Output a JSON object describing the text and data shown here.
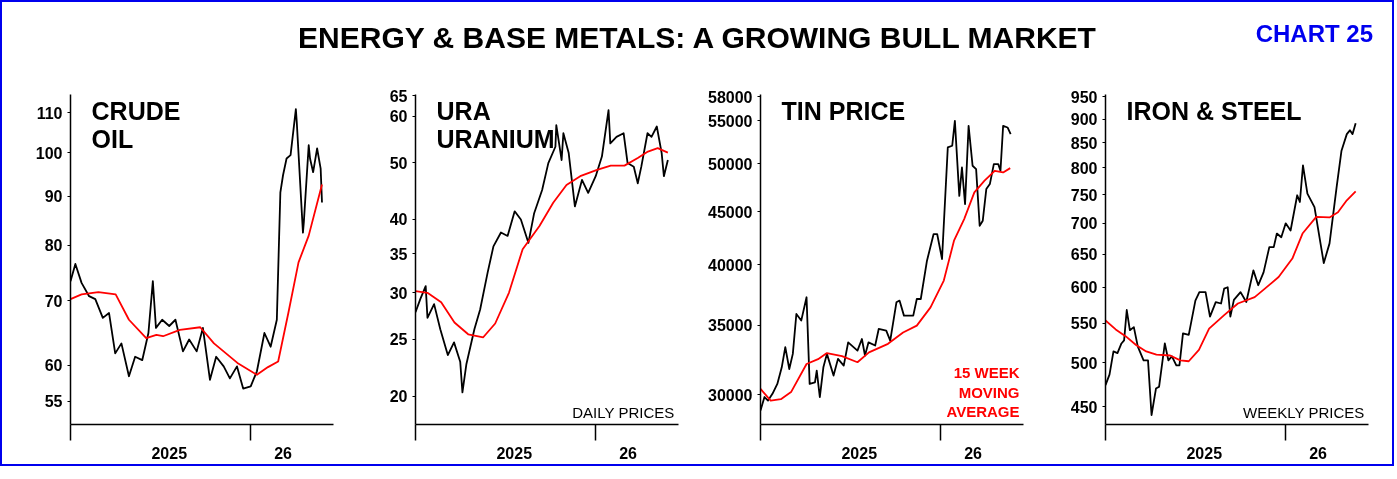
{
  "chart_data": [
    {
      "type": "line",
      "title": "CRUDE\nOIL",
      "log": true,
      "annotations": [
        "ENERGY & BASE METALS: A GROWING BULL MARKET",
        "CHART 25"
      ],
      "xlim": [
        "2024-11-20",
        "2026-07-07"
      ],
      "xticks": [
        {
          "value": "2024-11-20",
          "label": null
        },
        {
          "value": "2025-07-01",
          "label": "2025"
        },
        {
          "value": "2026-01-01",
          "label": null
        },
        {
          "value": "2026-03-15",
          "label": "26"
        }
      ],
      "ylim": [
        52,
        115
      ],
      "yticks": [
        55,
        60,
        70,
        80,
        90,
        100,
        110
      ],
      "series": [
        {
          "color": "#000000",
          "x": [
            "2024-11-20",
            "2024-12-01",
            "2024-12-15",
            "2025-01-01",
            "2025-01-15",
            "2025-02-01",
            "2025-02-15",
            "2025-03-01",
            "2025-03-15",
            "2025-04-01",
            "2025-04-15",
            "2025-05-01",
            "2025-05-15",
            "2025-05-25",
            "2025-06-01",
            "2025-06-15",
            "2025-07-01",
            "2025-07-15",
            "2025-08-01",
            "2025-08-15",
            "2025-09-01",
            "2025-09-15",
            "2025-10-01",
            "2025-10-15",
            "2025-11-01",
            "2025-11-15",
            "2025-12-01",
            "2025-12-15",
            "2026-01-01",
            "2026-01-15",
            "2026-02-01",
            "2026-02-15",
            "2026-03-01",
            "2026-03-09",
            "2026-03-15",
            "2026-03-23",
            "2026-04-01",
            "2026-04-13",
            "2026-04-15",
            "2026-04-29",
            "2026-05-01",
            "2026-05-12",
            "2026-05-15",
            "2026-05-22",
            "2026-05-31",
            "2026-06-08",
            "2026-06-11"
          ],
          "values": [
            73.4,
            76.5,
            73.1,
            70.8,
            70.3,
            67.2,
            68.0,
            61.7,
            63.2,
            58.4,
            61.2,
            60.7,
            64.8,
            73.4,
            65.6,
            66.9,
            65.9,
            66.9,
            62.0,
            63.8,
            62.0,
            65.6,
            57.9,
            61.2,
            59.8,
            58.1,
            59.8,
            56.7,
            57.0,
            59.1,
            64.8,
            62.7,
            66.9,
            90.9,
            94.7,
            98.6,
            99.4,
            111,
            107.7,
            82.5,
            84.6,
            101.8,
            98.6,
            95.4,
            101.0,
            96.2,
            88.7
          ]
        },
        {
          "color": "#ff0000",
          "x": [
            "2024-11-20",
            "2024-12-15",
            "2025-01-22",
            "2025-03-02",
            "2025-04-01",
            "2025-05-10",
            "2025-06-02",
            "2025-06-17",
            "2025-07-25",
            "2025-09-09",
            "2025-10-10",
            "2025-12-02",
            "2026-01-15",
            "2026-02-09",
            "2026-03-04",
            "2026-03-27",
            "2026-04-19",
            "2026-05-12",
            "2026-06-11"
          ],
          "values": [
            70.3,
            71.1,
            71.5,
            71.1,
            66.9,
            64.0,
            64.5,
            64.3,
            65.3,
            65.7,
            63.2,
            60.3,
            58.6,
            59.7,
            60.5,
            68.0,
            76.8,
            81.9,
            92.6
          ]
        }
      ]
    },
    {
      "type": "line",
      "title": "URA\nURANIUM",
      "log": true,
      "annotations": [
        "DAILY PRICES"
      ],
      "xlim": [
        "2024-11-20",
        "2026-07-07"
      ],
      "xticks": [
        {
          "value": "2024-11-20",
          "label": null
        },
        {
          "value": "2025-07-01",
          "label": "2025"
        },
        {
          "value": "2026-01-01",
          "label": null
        },
        {
          "value": "2026-03-15",
          "label": "26"
        }
      ],
      "ylim": [
        17.9,
        65.3
      ],
      "yticks": [
        20,
        25,
        30,
        35,
        40,
        50,
        60,
        65
      ],
      "series": [
        {
          "color": "#000000",
          "x": [
            "2024-11-20",
            "2024-12-01",
            "2024-12-13",
            "2024-12-17",
            "2025-01-01",
            "2025-01-15",
            "2025-02-01",
            "2025-02-15",
            "2025-03-01",
            "2025-03-06",
            "2025-03-15",
            "2025-04-02",
            "2025-04-15",
            "2025-05-02",
            "2025-05-15",
            "2025-06-01",
            "2025-06-16",
            "2025-07-02",
            "2025-07-16",
            "2025-08-02",
            "2025-08-15",
            "2025-09-02",
            "2025-09-16",
            "2025-10-02",
            "2025-10-04",
            "2025-10-16",
            "2025-10-20",
            "2025-11-01",
            "2025-11-15",
            "2025-12-01",
            "2025-12-15",
            "2026-01-01",
            "2026-01-15",
            "2026-01-30",
            "2026-02-03",
            "2026-02-10",
            "2026-02-17",
            "2026-03-05",
            "2026-03-14",
            "2026-03-28",
            "2026-04-06",
            "2026-04-14",
            "2026-04-28",
            "2026-05-07",
            "2026-05-19",
            "2026-05-30",
            "2026-06-04",
            "2026-06-13"
          ],
          "values": [
            27.8,
            29.3,
            30.8,
            27.2,
            28.7,
            26.0,
            23.5,
            24.7,
            22.9,
            20.3,
            22.7,
            26.0,
            28.1,
            32.5,
            36.0,
            38.0,
            37.5,
            41.3,
            40.0,
            36.5,
            41.0,
            44.9,
            49.9,
            53.2,
            57.9,
            50.5,
            56.1,
            51.9,
            42.1,
            46.7,
            44.4,
            47.4,
            51.2,
            61.4,
            53.9,
            54.6,
            55.3,
            56.1,
            49.9,
            49.2,
            46.1,
            49.2,
            56.1,
            55.3,
            57.6,
            51.9,
            47.4,
            50.5
          ]
        },
        {
          "color": "#ff0000",
          "x": [
            "2024-11-20",
            "2024-12-17",
            "2025-01-17",
            "2025-02-16",
            "2025-03-19",
            "2025-04-22",
            "2025-05-19",
            "2025-06-19",
            "2025-07-20",
            "2025-08-27",
            "2025-09-27",
            "2025-10-27",
            "2025-11-27",
            "2026-01-04",
            "2026-02-04",
            "2026-03-07",
            "2026-04-06",
            "2026-04-29",
            "2026-05-21",
            "2026-06-13"
          ],
          "values": [
            30.2,
            30.0,
            28.9,
            26.7,
            25.5,
            25.2,
            26.6,
            30.0,
            35.6,
            39.0,
            42.7,
            45.8,
            47.4,
            48.6,
            49.4,
            49.4,
            50.9,
            52.2,
            52.9,
            52.0
          ]
        }
      ]
    },
    {
      "type": "line",
      "title": "TIN PRICE",
      "log": true,
      "xlim": [
        "2024-11-20",
        "2026-07-07"
      ],
      "xticks": [
        {
          "value": "2024-11-20",
          "label": null
        },
        {
          "value": "2025-07-01",
          "label": "2025"
        },
        {
          "value": "2026-01-01",
          "label": null
        },
        {
          "value": "2026-03-15",
          "label": "26"
        }
      ],
      "ylim": [
        28100,
        58300
      ],
      "yticks": [
        30000,
        35000,
        40000,
        45000,
        50000,
        55000,
        58000
      ],
      "series": [
        {
          "color": "#000000",
          "x": [
            "2024-11-20",
            "2024-11-29",
            "2024-12-07",
            "2024-12-17",
            "2024-12-28",
            "2025-01-07",
            "2025-01-15",
            "2025-01-24",
            "2025-02-01",
            "2025-02-09",
            "2025-02-20",
            "2025-03-04",
            "2025-03-11",
            "2025-03-23",
            "2025-03-27",
            "2025-04-03",
            "2025-04-11",
            "2025-04-19",
            "2025-05-04",
            "2025-05-14",
            "2025-05-27",
            "2025-06-06",
            "2025-06-27",
            "2025-07-07",
            "2025-07-14",
            "2025-07-22",
            "2025-08-06",
            "2025-08-14",
            "2025-08-31",
            "2025-09-09",
            "2025-09-23",
            "2025-09-30",
            "2025-10-10",
            "2025-10-31",
            "2025-11-08",
            "2025-11-17",
            "2025-12-01",
            "2025-12-16",
            "2025-12-24",
            "2026-01-04",
            "2026-01-17",
            "2026-01-27",
            "2026-02-02",
            "2026-02-12",
            "2026-02-18",
            "2026-02-25",
            "2026-03-05",
            "2026-03-14",
            "2026-03-22",
            "2026-03-30",
            "2026-04-06",
            "2026-04-14",
            "2026-04-22",
            "2026-05-01",
            "2026-05-11",
            "2026-05-16",
            "2026-05-22",
            "2026-06-01",
            "2026-06-08"
          ],
          "values": [
            28990,
            29860,
            29630,
            30070,
            30740,
            31890,
            33340,
            31770,
            32850,
            35880,
            35360,
            37230,
            30740,
            30850,
            31660,
            29860,
            31890,
            32850,
            31310,
            32490,
            32010,
            33700,
            33090,
            33950,
            32730,
            33700,
            33460,
            34710,
            34590,
            33830,
            36820,
            36960,
            35750,
            35750,
            37090,
            37090,
            40370,
            42820,
            42820,
            40520,
            51860,
            52050,
            55000,
            46590,
            49610,
            45750,
            54400,
            49800,
            49430,
            43610,
            44100,
            47300,
            47820,
            49980,
            49980,
            49250,
            54400,
            54200,
            53400
          ]
        },
        {
          "name": "15 WEEK\nMOVING\nAVERAGE",
          "color": "#ff0000",
          "x": [
            "2024-11-20",
            "2024-12-13",
            "2025-01-05",
            "2025-01-28",
            "2025-03-04",
            "2025-03-30",
            "2025-04-19",
            "2025-05-23",
            "2025-06-27",
            "2025-07-23",
            "2025-09-04",
            "2025-10-08",
            "2025-11-08",
            "2025-12-09",
            "2026-01-08",
            "2026-01-31",
            "2026-02-23",
            "2026-03-18",
            "2026-04-10",
            "2026-05-03",
            "2026-05-22",
            "2026-06-07"
          ],
          "values": [
            30400,
            29620,
            29720,
            30190,
            32120,
            32470,
            32910,
            32690,
            32250,
            32960,
            33590,
            34440,
            34970,
            36410,
            38630,
            42190,
            44260,
            46950,
            48180,
            49250,
            49070,
            49540
          ]
        }
      ]
    },
    {
      "type": "line",
      "title": "IRON & STEEL",
      "log": true,
      "annotations": [
        "WEEKLY PRICES"
      ],
      "xlim": [
        "2024-11-20",
        "2026-07-07"
      ],
      "xticks": [
        {
          "value": "2024-11-20",
          "label": null
        },
        {
          "value": "2025-07-01",
          "label": "2025"
        },
        {
          "value": "2026-01-01",
          "label": null
        },
        {
          "value": "2026-03-15",
          "label": "26"
        }
      ],
      "ylim": [
        431,
        955
      ],
      "yticks": [
        450,
        500,
        550,
        600,
        650,
        700,
        750,
        800,
        850,
        900,
        950
      ],
      "series": [
        {
          "color": "#000000",
          "x": [
            "2024-11-20",
            "2024-11-29",
            "2024-12-08",
            "2024-12-17",
            "2024-12-26",
            "2025-01-01",
            "2025-01-07",
            "2025-01-14",
            "2025-01-23",
            "2025-02-01",
            "2025-02-14",
            "2025-02-24",
            "2025-03-04",
            "2025-03-14",
            "2025-03-21",
            "2025-04-03",
            "2025-04-11",
            "2025-04-19",
            "2025-04-29",
            "2025-05-06",
            "2025-05-14",
            "2025-05-27",
            "2025-06-11",
            "2025-06-20",
            "2025-07-04",
            "2025-07-14",
            "2025-07-27",
            "2025-08-08",
            "2025-08-15",
            "2025-08-23",
            "2025-08-29",
            "2025-09-06",
            "2025-09-21",
            "2025-10-04",
            "2025-10-20",
            "2025-10-31",
            "2025-11-12",
            "2025-11-25",
            "2025-12-05",
            "2025-12-12",
            "2025-12-22",
            "2026-01-01",
            "2026-01-12",
            "2026-01-27",
            "2026-02-02",
            "2026-02-09",
            "2026-02-19",
            "2026-03-07",
            "2026-03-28",
            "2026-04-10",
            "2026-04-26",
            "2026-05-07",
            "2026-05-19",
            "2026-05-26",
            "2026-06-01",
            "2026-06-08"
          ],
          "values": [
            474,
            486,
            514,
            512,
            524,
            528,
            568,
            541,
            545,
            520,
            503,
            503,
            441,
            470,
            472,
            524,
            503,
            508,
            497,
            497,
            537,
            535,
            581,
            593,
            593,
            559,
            579,
            577,
            598,
            600,
            559,
            582,
            593,
            579,
            625,
            603,
            622,
            661,
            661,
            683,
            677,
            700,
            688,
            749,
            737,
            805,
            752,
            728,
            636,
            667,
            764,
            834,
            868,
            876,
            868,
            891
          ]
        },
        {
          "color": "#ff0000",
          "x": [
            "2024-11-20",
            "2024-12-13",
            "2025-01-05",
            "2025-01-28",
            "2025-02-20",
            "2025-03-15",
            "2025-04-15",
            "2025-05-08",
            "2025-05-27",
            "2025-06-19",
            "2025-07-12",
            "2025-08-15",
            "2025-09-15",
            "2025-10-23",
            "2025-11-15",
            "2025-12-16",
            "2026-01-16",
            "2026-02-08",
            "2026-03-11",
            "2026-04-10",
            "2026-04-29",
            "2026-05-19",
            "2026-06-08"
          ],
          "values": [
            554,
            542,
            533,
            522,
            514,
            510,
            509,
            503,
            502,
            516,
            543,
            561,
            577,
            586,
            598,
            615,
            643,
            683,
            711,
            710,
            719,
            740,
            756
          ]
        }
      ]
    }
  ]
}
